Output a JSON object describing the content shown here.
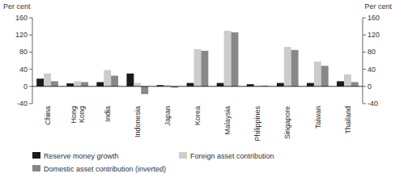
{
  "chart_data": {
    "type": "bar",
    "categories": [
      "China",
      "Hong\nKong",
      "India",
      "Indonesia",
      "Japan",
      "Korea",
      "Malaysia",
      "Philippines",
      "Singapore",
      "Taiwan",
      "Thailand"
    ],
    "series": [
      {
        "name": "Reserve money growth",
        "color": "#1a1a1a",
        "values": [
          18,
          7,
          10,
          30,
          3,
          8,
          8,
          5,
          8,
          8,
          12
        ]
      },
      {
        "name": "Foreign asset contribution",
        "color": "#cccccc",
        "values": [
          30,
          12,
          38,
          8,
          3,
          87,
          130,
          2,
          92,
          58,
          28
        ]
      },
      {
        "name": "Domestic asset contribution (inverted)",
        "color": "#888888",
        "values": [
          12,
          10,
          25,
          -18,
          -3,
          83,
          126,
          2,
          85,
          48,
          10
        ]
      }
    ],
    "ylabel": "Per cent",
    "y2label": "Per cent",
    "ylim": [
      -40,
      160
    ],
    "yticks": [
      -40,
      0,
      40,
      80,
      120,
      160
    ],
    "y2lim": [
      -40,
      160
    ],
    "y2ticks": [
      -40,
      0,
      40,
      80,
      120,
      160
    ],
    "grid": false,
    "legend": "bottom"
  }
}
